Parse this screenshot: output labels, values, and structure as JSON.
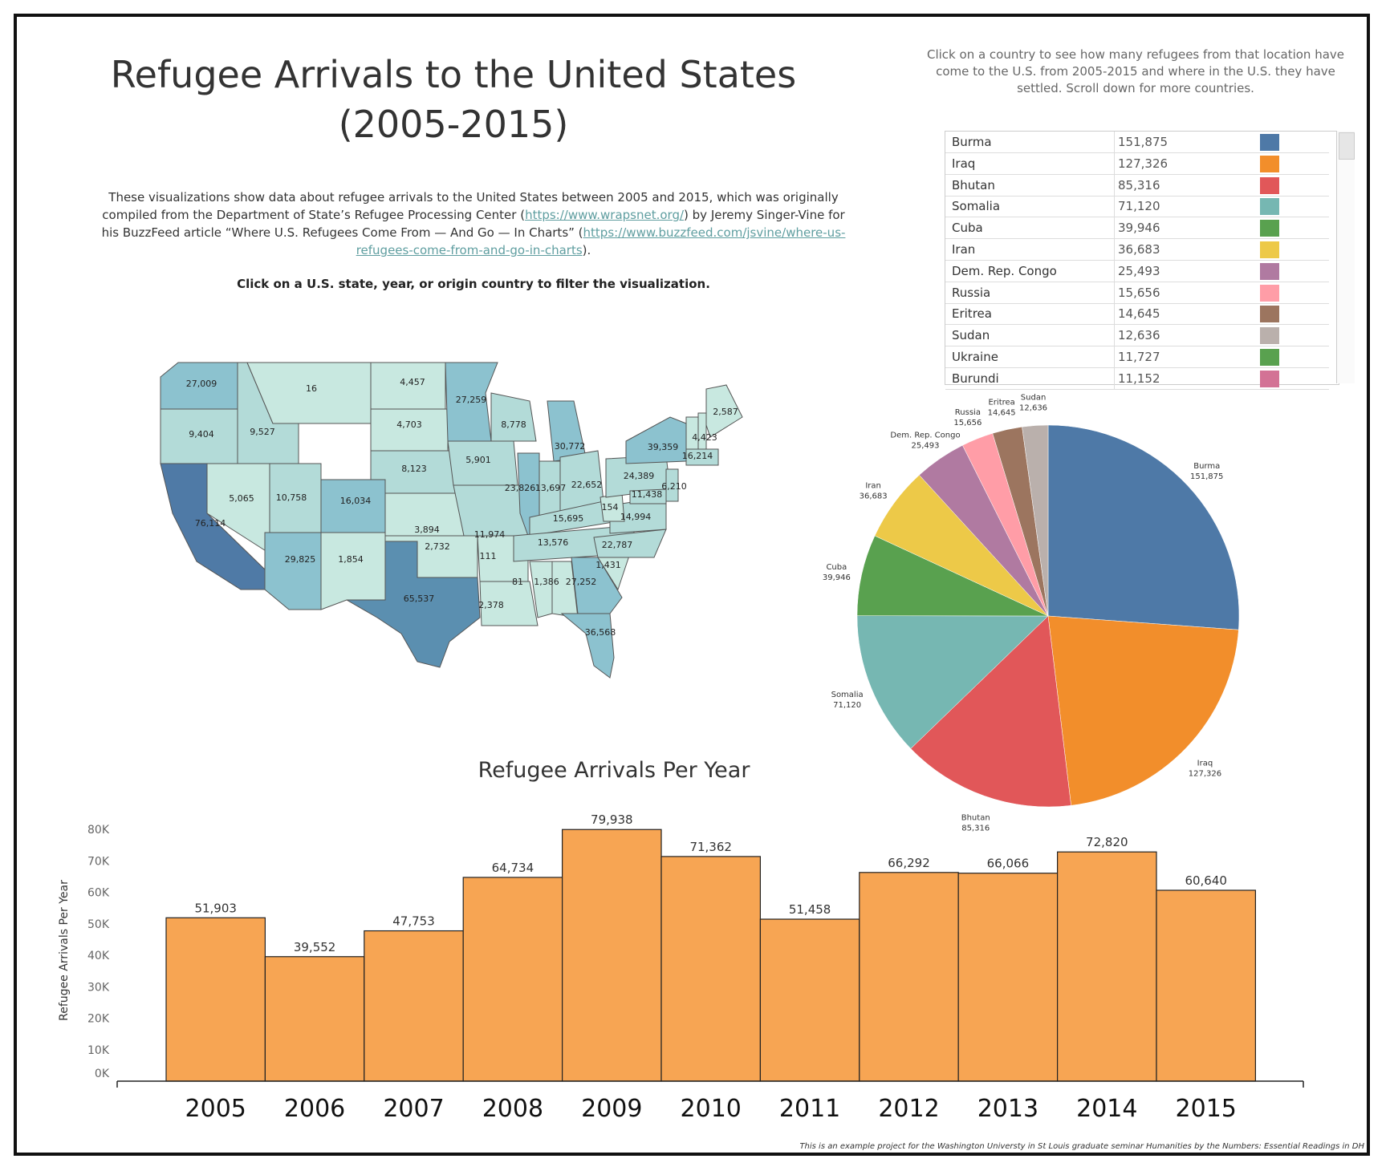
{
  "header": {
    "title_line1": "Refugee Arrivals to the United States",
    "title_line2": "(2005-2015)",
    "instruction": "Click on a country to see how many refugees from that location have come to the U.S. from 2005-2015 and where in the U.S. they have settled. Scroll down for more countries."
  },
  "description": {
    "p1": "These visualizations show data about refugee arrivals to the United States between 2005 and 2015, which was originally compiled from the Department of State’s Refugee Processing Center (",
    "link1": "https://www.wrapsnet.org/",
    "p2": ") by Jeremy Singer-Vine for his BuzzFeed article “Where U.S. Refugees Come From — And Go — In Charts” (",
    "link2": "https://www.buzzfeed.com/jsvine/where-us-refugees-come-from-and-go-in-charts",
    "p3": ").",
    "click_note": "Click on a U.S. state, year, or origin country to filter the visualization."
  },
  "country_table": [
    {
      "country": "Burma",
      "value": "151,875",
      "color": "#4e79a7"
    },
    {
      "country": "Iraq",
      "value": "127,326",
      "color": "#f28e2b"
    },
    {
      "country": "Bhutan",
      "value": "85,316",
      "color": "#e15759"
    },
    {
      "country": "Somalia",
      "value": "71,120",
      "color": "#76b7b2"
    },
    {
      "country": "Cuba",
      "value": "39,946",
      "color": "#59a14f"
    },
    {
      "country": "Iran",
      "value": "36,683",
      "color": "#edc948"
    },
    {
      "country": "Dem. Rep. Congo",
      "value": "25,493",
      "color": "#b07aa1"
    },
    {
      "country": "Russia",
      "value": "15,656",
      "color": "#ff9da7"
    },
    {
      "country": "Eritrea",
      "value": "14,645",
      "color": "#9c755f"
    },
    {
      "country": "Sudan",
      "value": "12,636",
      "color": "#bab0ac"
    },
    {
      "country": "Ukraine",
      "value": "11,727",
      "color": "#59a14f"
    },
    {
      "country": "Burundi",
      "value": "11,152",
      "color": "#d37295"
    }
  ],
  "map_labels": [
    {
      "state": "WA",
      "value": "27,009"
    },
    {
      "state": "OR",
      "value": "9,404"
    },
    {
      "state": "ID",
      "value": "9,527"
    },
    {
      "state": "MT",
      "value": "16"
    },
    {
      "state": "ND",
      "value": "4,457"
    },
    {
      "state": "SD",
      "value": "4,703"
    },
    {
      "state": "MN",
      "value": "27,259"
    },
    {
      "state": "WI",
      "value": "8,778"
    },
    {
      "state": "MI",
      "value": "30,772"
    },
    {
      "state": "NY",
      "value": "39,359"
    },
    {
      "state": "ME",
      "value": "2,587"
    },
    {
      "state": "VT",
      "value": "4,423"
    },
    {
      "state": "MA",
      "value": "16,214"
    },
    {
      "state": "NE",
      "value": "8,123"
    },
    {
      "state": "IA",
      "value": "5,901"
    },
    {
      "state": "IL",
      "value": "23,826"
    },
    {
      "state": "IN",
      "value": "13,697"
    },
    {
      "state": "OH",
      "value": "22,652"
    },
    {
      "state": "PA",
      "value": "24,389"
    },
    {
      "state": "NJ",
      "value": "6,210"
    },
    {
      "state": "MD",
      "value": "11,438"
    },
    {
      "state": "CA",
      "value": "76,114"
    },
    {
      "state": "NV",
      "value": "5,065"
    },
    {
      "state": "UT",
      "value": "10,758"
    },
    {
      "state": "CO",
      "value": "16,034"
    },
    {
      "state": "KS",
      "value": "3,894"
    },
    {
      "state": "MO",
      "value": "11,974"
    },
    {
      "state": "KY",
      "value": "15,695"
    },
    {
      "state": "WV",
      "value": "154"
    },
    {
      "state": "VA",
      "value": "14,994"
    },
    {
      "state": "AZ",
      "value": "29,825"
    },
    {
      "state": "NM",
      "value": "1,854"
    },
    {
      "state": "OK",
      "value": "2,732"
    },
    {
      "state": "AR",
      "value": "111"
    },
    {
      "state": "TN",
      "value": "13,576"
    },
    {
      "state": "NC",
      "value": "22,787"
    },
    {
      "state": "SC",
      "value": "1,431"
    },
    {
      "state": "TX",
      "value": "65,537"
    },
    {
      "state": "LA",
      "value": "2,378"
    },
    {
      "state": "MS",
      "value": "81"
    },
    {
      "state": "AL",
      "value": "1,386"
    },
    {
      "state": "GA",
      "value": "27,252"
    },
    {
      "state": "FL",
      "value": "36,568"
    }
  ],
  "chart_data": [
    {
      "type": "pie",
      "slices": [
        {
          "label": "Burma",
          "value": 151875,
          "color": "#4e79a7"
        },
        {
          "label": "Iraq",
          "value": 127326,
          "color": "#f28e2b"
        },
        {
          "label": "Bhutan",
          "value": 85316,
          "color": "#e15759"
        },
        {
          "label": "Somalia",
          "value": 71120,
          "color": "#76b7b2"
        },
        {
          "label": "Cuba",
          "value": 39946,
          "color": "#59a14f"
        },
        {
          "label": "Iran",
          "value": 36683,
          "color": "#edc948"
        },
        {
          "label": "Dem. Rep. Congo",
          "value": 25493,
          "color": "#b07aa1"
        },
        {
          "label": "Russia",
          "value": 15656,
          "color": "#ff9da7"
        },
        {
          "label": "Eritrea",
          "value": 14645,
          "color": "#9c755f"
        },
        {
          "label": "Sudan",
          "value": 12636,
          "color": "#bab0ac"
        }
      ]
    },
    {
      "type": "bar",
      "title": "Refugee Arrivals Per Year",
      "ylabel": "Refugee Arrivals Per Year",
      "xlabel": "",
      "categories": [
        "2005",
        "2006",
        "2007",
        "2008",
        "2009",
        "2010",
        "2011",
        "2012",
        "2013",
        "2014",
        "2015"
      ],
      "values": [
        51903,
        39552,
        47753,
        64734,
        79938,
        71362,
        51458,
        66292,
        66066,
        72820,
        60640
      ],
      "data_labels": [
        "51,903",
        "39,552",
        "47,753",
        "64,734",
        "79,938",
        "71,362",
        "51,458",
        "66,292",
        "66,066",
        "72,820",
        "60,640"
      ],
      "ylim": [
        0,
        80000
      ],
      "yticks": [
        "0K",
        "10K",
        "20K",
        "30K",
        "40K",
        "50K",
        "60K",
        "70K",
        "80K"
      ],
      "bar_color": "#f7a553",
      "grid": false
    }
  ],
  "footer": "This is an example project for the Washington Universty in St Louis graduate seminar Humanities by the Numbers: Essential Readings in DH"
}
